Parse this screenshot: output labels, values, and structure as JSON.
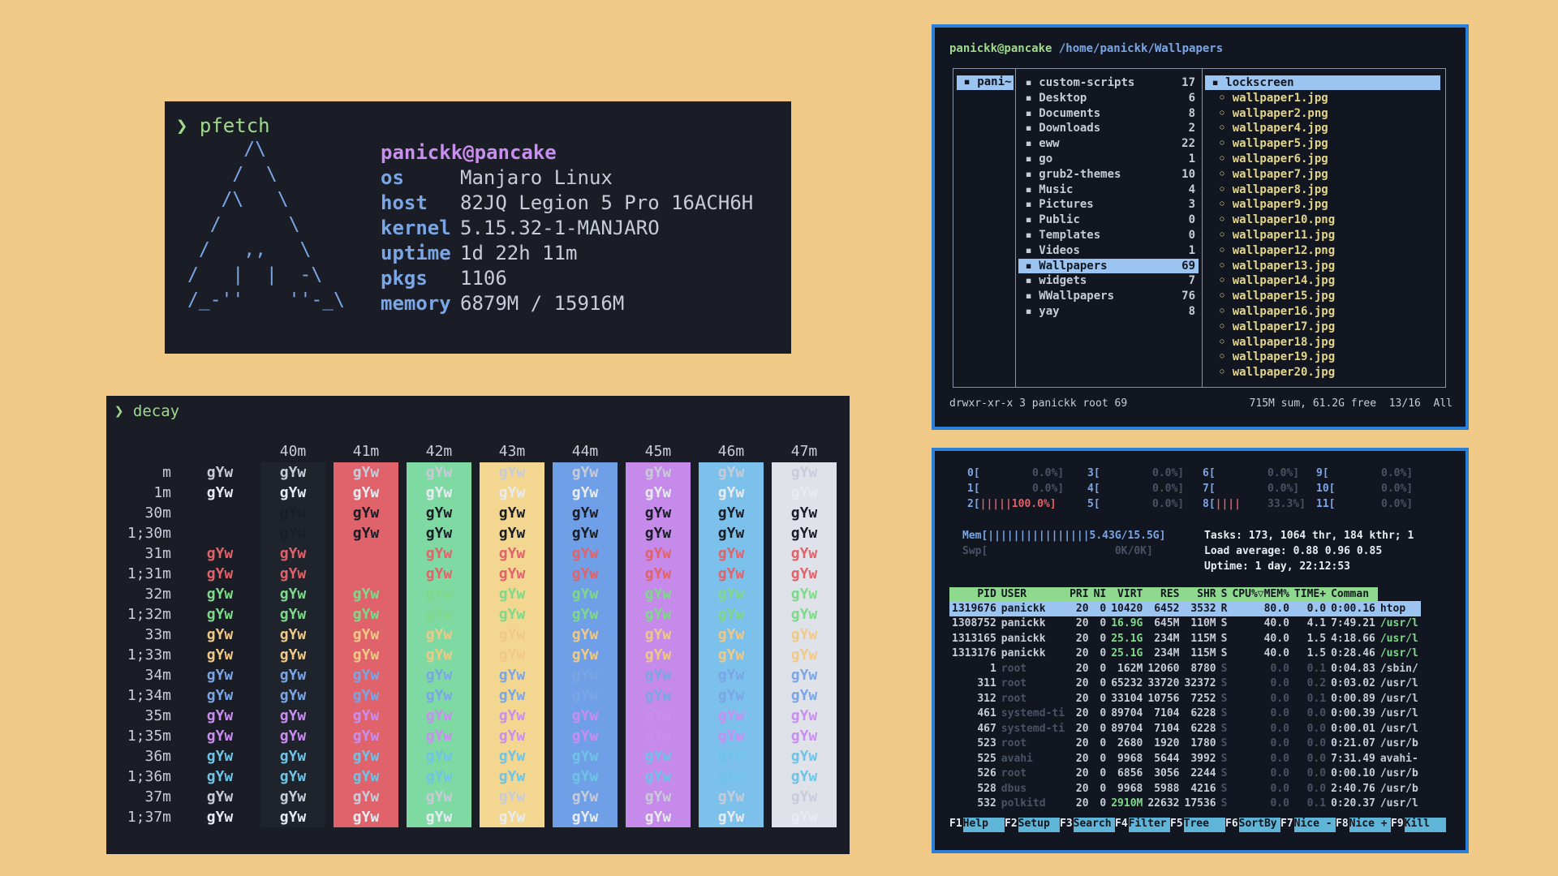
{
  "pfetch": {
    "prompt": "❯",
    "command": "pfetch",
    "user": "panickk@pancake",
    "info": [
      {
        "key": "os",
        "value": "Manjaro Linux"
      },
      {
        "key": "host",
        "value": "82JQ Legion 5 Pro 16ACH6H"
      },
      {
        "key": "kernel",
        "value": "5.15.32-1-MANJARO"
      },
      {
        "key": "uptime",
        "value": "1d 22h 11m"
      },
      {
        "key": "pkgs",
        "value": "1106"
      },
      {
        "key": "memory",
        "value": "6879M / 15916M"
      }
    ]
  },
  "decay": {
    "prompt": "❯",
    "command": "decay",
    "sample": "gYw",
    "headers": [
      "40m",
      "41m",
      "42m",
      "43m",
      "44m",
      "45m",
      "46m",
      "47m"
    ],
    "row_labels": [
      "m",
      "1m",
      "30m",
      "1;30m",
      "31m",
      "1;31m",
      "32m",
      "1;32m",
      "33m",
      "1;33m",
      "34m",
      "1;34m",
      "35m",
      "1;35m",
      "36m",
      "1;36m",
      "37m",
      "1;37m"
    ],
    "bg_colors": [
      "#1f232c",
      "#e0626a",
      "#7fd9a2",
      "#f3d68f",
      "#6f9fe6",
      "#c58aea",
      "#7cc1ec",
      "#dfe2e8"
    ],
    "fg_colors": [
      "#c7ccd8",
      "#e8ecf2",
      "#1a1d26",
      "#1a1d26",
      "#e0626a",
      "#e0626a",
      "#7fd98a",
      "#7fd98a",
      "#f0c987",
      "#f0c987",
      "#7aa6e6",
      "#7aa6e6",
      "#c98ef0",
      "#c98ef0",
      "#6fc3e6",
      "#6fc3e6",
      "#c7ccd8",
      "#e8ecf2"
    ]
  },
  "ranger": {
    "user": "panickk@pancake",
    "path": "/home/panickk/Wallpapers",
    "parent": "pani~",
    "dirs": [
      {
        "name": "custom-scripts",
        "count": "17"
      },
      {
        "name": "Desktop",
        "count": "6"
      },
      {
        "name": "Documents",
        "count": "8"
      },
      {
        "name": "Downloads",
        "count": "2"
      },
      {
        "name": "eww",
        "count": "22"
      },
      {
        "name": "go",
        "count": "1"
      },
      {
        "name": "grub2-themes",
        "count": "10"
      },
      {
        "name": "Music",
        "count": "4"
      },
      {
        "name": "Pictures",
        "count": "3"
      },
      {
        "name": "Public",
        "count": "0"
      },
      {
        "name": "Templates",
        "count": "0"
      },
      {
        "name": "Videos",
        "count": "1"
      },
      {
        "name": "Wallpapers",
        "count": "69"
      },
      {
        "name": "widgets",
        "count": "7"
      },
      {
        "name": "WWallpapers",
        "count": "76"
      },
      {
        "name": "yay",
        "count": "8"
      }
    ],
    "files": [
      "lockscreen",
      "wallpaper1.jpg",
      "wallpaper2.png",
      "wallpaper4.jpg",
      "wallpaper5.jpg",
      "wallpaper6.jpg",
      "wallpaper7.jpg",
      "wallpaper8.jpg",
      "wallpaper9.jpg",
      "wallpaper10.png",
      "wallpaper11.jpg",
      "wallpaper12.png",
      "wallpaper13.jpg",
      "wallpaper14.jpg",
      "wallpaper15.jpg",
      "wallpaper16.jpg",
      "wallpaper17.jpg",
      "wallpaper18.jpg",
      "wallpaper19.jpg",
      "wallpaper20.jpg"
    ],
    "status_left": "drwxr-xr-x 3 panickk root 69",
    "status_right": "715M sum, 61.2G free  13/16  All"
  },
  "htop": {
    "cpus": [
      [
        "0[",
        "0.0%]",
        "3[",
        "0.0%]",
        "6[",
        "0.0%]",
        "9[",
        "0.0%]"
      ],
      [
        "1[",
        "0.0%]",
        "4[",
        "0.0%]",
        "7[",
        "0.0%]",
        "10[",
        "0.0%]"
      ],
      [
        "2[|||||100.0%]",
        "",
        "5[",
        "0.0%]",
        "8[||||",
        "33.3%]",
        "11[",
        "0.0%]"
      ]
    ],
    "mem": "Mem[||||||||||||||||5.43G/15.5G]",
    "swp": "Swp[                    0K/0K]",
    "tasks": "Tasks: 173, 1064 thr, 184 kthr; 1",
    "load": "Load average: 0.88 0.96 0.85",
    "uptime": "Uptime: 1 day, 22:12:53",
    "columns": [
      "PID",
      "USER",
      "PRI",
      "NI",
      "VIRT",
      "RES",
      "SHR",
      "S",
      "CPU%▽MEM%",
      "TIME+",
      "Comman"
    ],
    "rows": [
      [
        "1319676",
        "panickk",
        "20",
        "0",
        "10420",
        "6452",
        "3532",
        "R",
        "80.0",
        "0.0",
        "0:00.16",
        "htop"
      ],
      [
        "1308752",
        "panickk",
        "20",
        "0",
        "16.9G",
        "645M",
        "110M",
        "S",
        "40.0",
        "4.1",
        "7:49.21",
        "/usr/l"
      ],
      [
        "1313165",
        "panickk",
        "20",
        "0",
        "25.1G",
        "234M",
        "115M",
        "S",
        "40.0",
        "1.5",
        "4:18.66",
        "/usr/l"
      ],
      [
        "1313176",
        "panickk",
        "20",
        "0",
        "25.1G",
        "234M",
        "115M",
        "S",
        "40.0",
        "1.5",
        "0:28.46",
        "/usr/l"
      ],
      [
        "1",
        "root",
        "20",
        "0",
        "162M",
        "12060",
        "8780",
        "S",
        "0.0",
        "0.1",
        "0:04.83",
        "/sbin/"
      ],
      [
        "311",
        "root",
        "20",
        "0",
        "65232",
        "33720",
        "32372",
        "S",
        "0.0",
        "0.2",
        "0:03.02",
        "/usr/l"
      ],
      [
        "312",
        "root",
        "20",
        "0",
        "33104",
        "10756",
        "7252",
        "S",
        "0.0",
        "0.1",
        "0:00.89",
        "/usr/l"
      ],
      [
        "461",
        "systemd-ti",
        "20",
        "0",
        "89704",
        "7104",
        "6228",
        "S",
        "0.0",
        "0.0",
        "0:00.39",
        "/usr/l"
      ],
      [
        "467",
        "systemd-ti",
        "20",
        "0",
        "89704",
        "7104",
        "6228",
        "S",
        "0.0",
        "0.0",
        "0:00.01",
        "/usr/l"
      ],
      [
        "523",
        "root",
        "20",
        "0",
        "2680",
        "1920",
        "1780",
        "S",
        "0.0",
        "0.0",
        "0:21.07",
        "/usr/b"
      ],
      [
        "525",
        "avahi",
        "20",
        "0",
        "9968",
        "5644",
        "3992",
        "S",
        "0.0",
        "0.0",
        "7:31.49",
        "avahi-"
      ],
      [
        "526",
        "root",
        "20",
        "0",
        "6856",
        "3056",
        "2244",
        "S",
        "0.0",
        "0.0",
        "0:00.10",
        "/usr/b"
      ],
      [
        "528",
        "dbus",
        "20",
        "0",
        "9968",
        "5988",
        "4216",
        "S",
        "0.0",
        "0.0",
        "2:40.76",
        "/usr/b"
      ],
      [
        "532",
        "polkitd",
        "20",
        "0",
        "2910M",
        "22632",
        "17536",
        "S",
        "0.0",
        "0.1",
        "0:20.37",
        "/usr/l"
      ]
    ],
    "fkeys": [
      {
        "k": "F1",
        "l": "Help"
      },
      {
        "k": "F2",
        "l": "Setup"
      },
      {
        "k": "F3",
        "l": "Search"
      },
      {
        "k": "F4",
        "l": "Filter"
      },
      {
        "k": "F5",
        "l": "Tree"
      },
      {
        "k": "F6",
        "l": "SortBy"
      },
      {
        "k": "F7",
        "l": "Nice -"
      },
      {
        "k": "F8",
        "l": "Nice +"
      },
      {
        "k": "F9",
        "l": "Kill"
      }
    ]
  }
}
